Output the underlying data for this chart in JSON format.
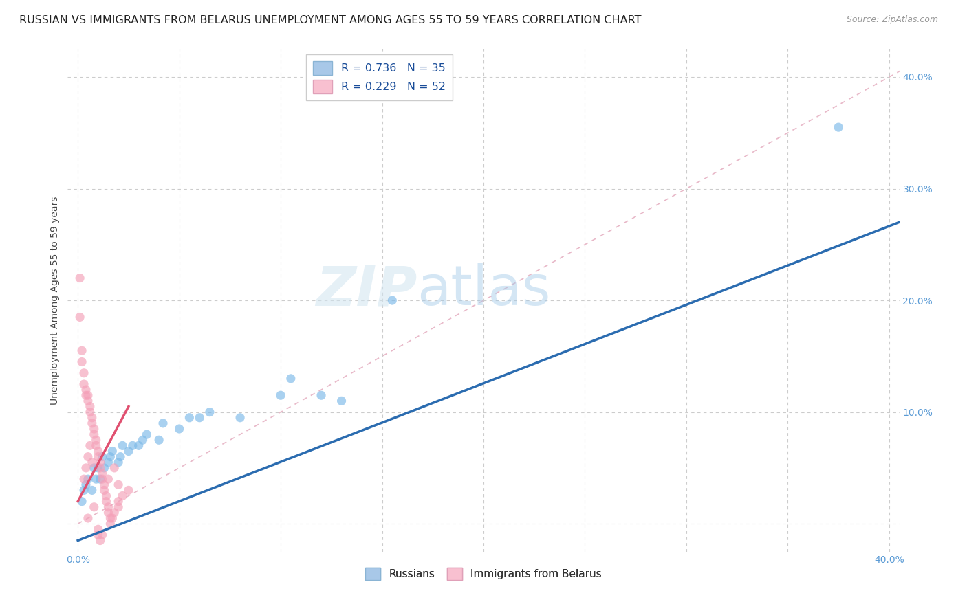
{
  "title": "RUSSIAN VS IMMIGRANTS FROM BELARUS UNEMPLOYMENT AMONG AGES 55 TO 59 YEARS CORRELATION CHART",
  "source": "Source: ZipAtlas.com",
  "ylabel": "Unemployment Among Ages 55 to 59 years",
  "xlim": [
    -0.005,
    0.405
  ],
  "ylim": [
    -0.025,
    0.425
  ],
  "xticks": [
    0.0,
    0.05,
    0.1,
    0.15,
    0.2,
    0.25,
    0.3,
    0.35,
    0.4
  ],
  "ytick_positions": [
    0.0,
    0.1,
    0.2,
    0.3,
    0.4
  ],
  "blue_scatter": [
    [
      0.002,
      0.02
    ],
    [
      0.003,
      0.03
    ],
    [
      0.004,
      0.035
    ],
    [
      0.005,
      0.04
    ],
    [
      0.007,
      0.03
    ],
    [
      0.008,
      0.05
    ],
    [
      0.009,
      0.04
    ],
    [
      0.01,
      0.05
    ],
    [
      0.011,
      0.04
    ],
    [
      0.012,
      0.06
    ],
    [
      0.013,
      0.05
    ],
    [
      0.015,
      0.055
    ],
    [
      0.016,
      0.06
    ],
    [
      0.017,
      0.065
    ],
    [
      0.02,
      0.055
    ],
    [
      0.021,
      0.06
    ],
    [
      0.022,
      0.07
    ],
    [
      0.025,
      0.065
    ],
    [
      0.027,
      0.07
    ],
    [
      0.03,
      0.07
    ],
    [
      0.032,
      0.075
    ],
    [
      0.034,
      0.08
    ],
    [
      0.04,
      0.075
    ],
    [
      0.042,
      0.09
    ],
    [
      0.05,
      0.085
    ],
    [
      0.055,
      0.095
    ],
    [
      0.06,
      0.095
    ],
    [
      0.065,
      0.1
    ],
    [
      0.08,
      0.095
    ],
    [
      0.1,
      0.115
    ],
    [
      0.105,
      0.13
    ],
    [
      0.12,
      0.115
    ],
    [
      0.13,
      0.11
    ],
    [
      0.155,
      0.2
    ],
    [
      0.375,
      0.355
    ]
  ],
  "pink_scatter": [
    [
      0.001,
      0.22
    ],
    [
      0.001,
      0.185
    ],
    [
      0.002,
      0.155
    ],
    [
      0.002,
      0.145
    ],
    [
      0.003,
      0.135
    ],
    [
      0.003,
      0.125
    ],
    [
      0.004,
      0.12
    ],
    [
      0.004,
      0.115
    ],
    [
      0.005,
      0.115
    ],
    [
      0.005,
      0.11
    ],
    [
      0.006,
      0.105
    ],
    [
      0.006,
      0.1
    ],
    [
      0.007,
      0.095
    ],
    [
      0.007,
      0.09
    ],
    [
      0.008,
      0.085
    ],
    [
      0.008,
      0.08
    ],
    [
      0.009,
      0.075
    ],
    [
      0.009,
      0.07
    ],
    [
      0.01,
      0.065
    ],
    [
      0.01,
      0.06
    ],
    [
      0.011,
      0.055
    ],
    [
      0.011,
      0.05
    ],
    [
      0.012,
      0.045
    ],
    [
      0.012,
      0.04
    ],
    [
      0.013,
      0.035
    ],
    [
      0.013,
      0.03
    ],
    [
      0.014,
      0.025
    ],
    [
      0.014,
      0.02
    ],
    [
      0.015,
      0.015
    ],
    [
      0.015,
      0.01
    ],
    [
      0.016,
      0.005
    ],
    [
      0.016,
      0.0
    ],
    [
      0.017,
      0.005
    ],
    [
      0.018,
      0.01
    ],
    [
      0.02,
      0.015
    ],
    [
      0.02,
      0.02
    ],
    [
      0.022,
      0.025
    ],
    [
      0.025,
      0.03
    ],
    [
      0.003,
      0.04
    ],
    [
      0.004,
      0.05
    ],
    [
      0.005,
      0.06
    ],
    [
      0.006,
      0.07
    ],
    [
      0.007,
      0.055
    ],
    [
      0.01,
      -0.005
    ],
    [
      0.01,
      -0.01
    ],
    [
      0.011,
      -0.015
    ],
    [
      0.012,
      -0.01
    ],
    [
      0.005,
      0.005
    ],
    [
      0.008,
      0.015
    ],
    [
      0.015,
      0.04
    ],
    [
      0.018,
      0.05
    ],
    [
      0.02,
      0.035
    ]
  ],
  "blue_line": {
    "x0": 0.0,
    "y0": -0.015,
    "x1": 0.405,
    "y1": 0.27
  },
  "pink_line": {
    "x0": 0.0,
    "y0": 0.02,
    "x1": 0.025,
    "y1": 0.105
  },
  "ref_line": {
    "x0": 0.0,
    "y0": 0.0,
    "x1": 0.41,
    "y1": 0.41
  },
  "watermark_text": "ZIPatlas",
  "bg_color": "#ffffff",
  "blue_color": "#7cb9e8",
  "pink_color": "#f4a0b8",
  "blue_line_color": "#2b6cb0",
  "pink_line_color": "#e05070",
  "ref_line_color": "#ccbbbb",
  "grid_color": "#cccccc",
  "title_fontsize": 11.5,
  "axis_label_fontsize": 10,
  "tick_fontsize": 10
}
